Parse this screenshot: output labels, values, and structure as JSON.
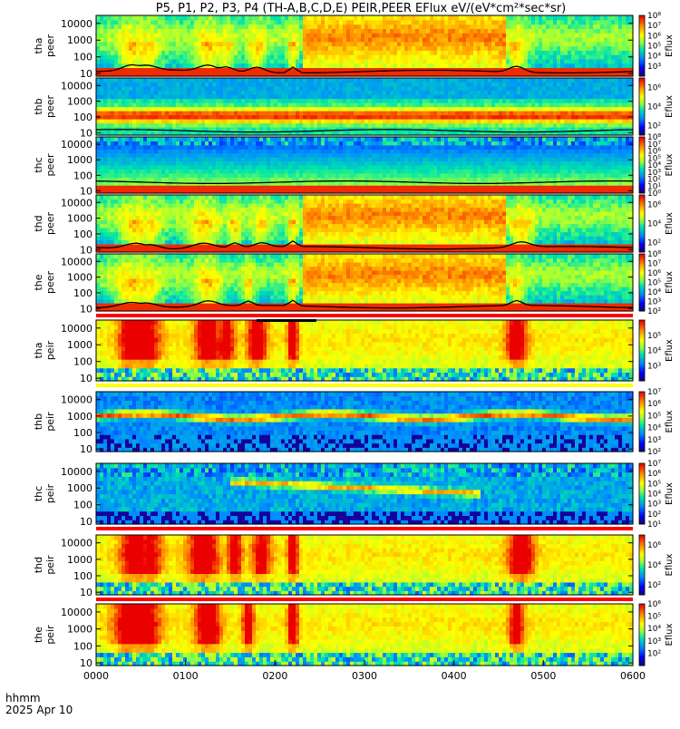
{
  "title": "P5, P1, P2, P3, P4 (TH-A,B,C,D,E) PEIR,PEER EFlux eV/(eV*cm²*sec*sr)",
  "date_label": "2025 Apr 10",
  "time_axis_label": "hhmm",
  "chart_data": {
    "type": "heatmap",
    "x_tick_labels": [
      "0000",
      "0100",
      "0200",
      "0300",
      "0400",
      "0500",
      "0600"
    ],
    "x_range_hours": [
      0,
      6
    ],
    "y_tick_labels": [
      "10",
      "100",
      "1000",
      "10000"
    ],
    "y_scale": "log",
    "y_range_eV": [
      7,
      30000
    ],
    "colorbar_label": "Eflux",
    "panels": [
      {
        "id": "tha-peer",
        "line1": "tha",
        "line2": "peer",
        "species": "electron",
        "cbar_ticks": [
          "10³",
          "10⁴",
          "10⁵",
          "10⁶",
          "10⁷",
          "10⁸"
        ],
        "cbar_range_exp": [
          2,
          8
        ],
        "has_black_line": true
      },
      {
        "id": "thb-peer",
        "line1": "thb",
        "line2": "peer",
        "species": "electron",
        "cbar_ticks": [
          "10²",
          "10⁴",
          "10⁶"
        ],
        "cbar_range_exp": [
          1,
          7
        ],
        "has_black_line": true
      },
      {
        "id": "thc-peer",
        "line1": "thc",
        "line2": "peer",
        "species": "electron",
        "cbar_ticks": [
          "10⁰",
          "10¹",
          "10²",
          "10³",
          "10⁴",
          "10⁵",
          "10⁶",
          "10⁷",
          "10⁸"
        ],
        "cbar_range_exp": [
          0,
          8
        ],
        "has_black_line": true
      },
      {
        "id": "thd-peer",
        "line1": "thd",
        "line2": "peer",
        "species": "electron",
        "cbar_ticks": [
          "10²",
          "10⁴",
          "10⁶"
        ],
        "cbar_range_exp": [
          1,
          7
        ],
        "has_black_line": true
      },
      {
        "id": "the-peer",
        "line1": "the",
        "line2": "peer",
        "species": "electron",
        "cbar_ticks": [
          "10²",
          "10³",
          "10⁴",
          "10⁵",
          "10⁶",
          "10⁷",
          "10⁸"
        ],
        "cbar_range_exp": [
          2,
          8
        ],
        "has_black_line": true
      },
      {
        "id": "tha-peir",
        "line1": "tha",
        "line2": "peir",
        "species": "ion",
        "cbar_ticks": [
          "10³",
          "10⁴",
          "10⁵"
        ],
        "cbar_range_exp": [
          2,
          6
        ],
        "has_black_line": false
      },
      {
        "id": "thb-peir",
        "line1": "thb",
        "line2": "peir",
        "species": "ion",
        "cbar_ticks": [
          "10²",
          "10³",
          "10⁴",
          "10⁵",
          "10⁶",
          "10⁷"
        ],
        "cbar_range_exp": [
          2,
          7
        ],
        "has_black_line": false
      },
      {
        "id": "thc-peir",
        "line1": "thc",
        "line2": "peir",
        "species": "ion",
        "cbar_ticks": [
          "10¹",
          "10²",
          "10³",
          "10⁴",
          "10⁵",
          "10⁶",
          "10⁷"
        ],
        "cbar_range_exp": [
          1,
          7
        ],
        "has_black_line": false
      },
      {
        "id": "thd-peir",
        "line1": "thd",
        "line2": "peir",
        "species": "ion",
        "cbar_ticks": [
          "10²",
          "10⁴",
          "10⁶"
        ],
        "cbar_range_exp": [
          1,
          7
        ],
        "has_black_line": false
      },
      {
        "id": "the-peir",
        "line1": "the",
        "line2": "peir",
        "species": "ion",
        "cbar_ticks": [
          "10²",
          "10³",
          "10⁴",
          "10⁵",
          "10⁶"
        ],
        "cbar_range_exp": [
          1,
          6
        ],
        "has_black_line": false
      }
    ],
    "bar_colors": {
      "red": "#ff0000",
      "yellow": "#ffff00",
      "black": "#000000"
    }
  }
}
